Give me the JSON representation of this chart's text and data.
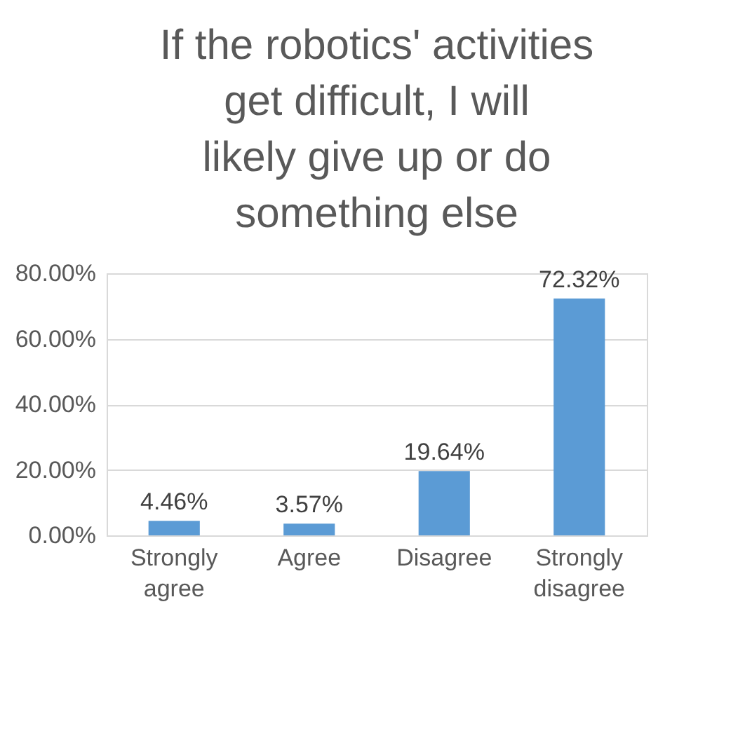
{
  "chart_data": {
    "type": "bar",
    "title": "If the robotics' activities get difficult, I will likely give up or do something else",
    "categories": [
      "Strongly agree",
      "Agree",
      "Disagree",
      "Strongly disagree"
    ],
    "values": [
      4.46,
      3.57,
      19.64,
      72.32
    ],
    "color": "#5b9bd5",
    "value_labels": [
      "4.46%",
      "3.57%",
      "19.64%",
      "72.32%"
    ],
    "ylim": [
      0,
      80
    ],
    "yticks": [
      {
        "value": 0,
        "label": "0.00%"
      },
      {
        "value": 20,
        "label": "20.00%"
      },
      {
        "value": 40,
        "label": "40.00%"
      },
      {
        "value": 60,
        "label": "60.00%"
      },
      {
        "value": 80,
        "label": "80.00%"
      }
    ],
    "grid": "y"
  }
}
